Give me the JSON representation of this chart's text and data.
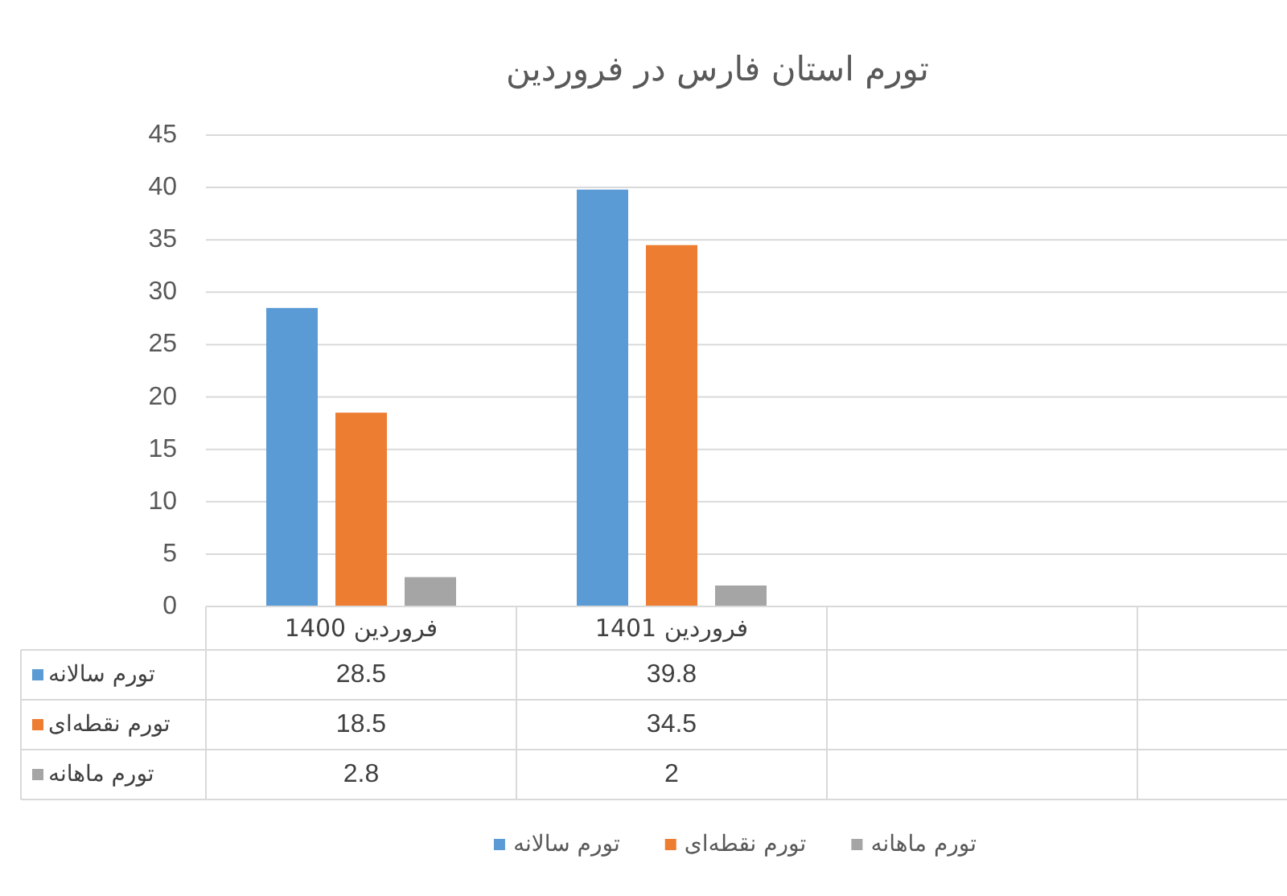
{
  "chart_data": {
    "type": "bar",
    "title": "تورم استان فارس در فروردین",
    "categories": [
      "فروردین 1400",
      "فروردین 1401",
      null,
      null
    ],
    "series": [
      {
        "name": "تورم سالانه",
        "color": "#5b9bd5",
        "values": [
          28.5,
          39.8,
          null,
          null
        ]
      },
      {
        "name": "تورم نقطه‌ای",
        "color": "#ed7d31",
        "values": [
          18.5,
          34.5,
          null,
          null
        ]
      },
      {
        "name": "تورم ماهانه",
        "color": "#a5a5a5",
        "values": [
          2.8,
          2,
          null,
          null
        ]
      }
    ],
    "ylim": [
      0,
      45
    ],
    "yticks": [
      0,
      5,
      10,
      15,
      20,
      25,
      30,
      35,
      40,
      45
    ],
    "grid": "y",
    "legend": "bottom",
    "data_labels": true
  }
}
